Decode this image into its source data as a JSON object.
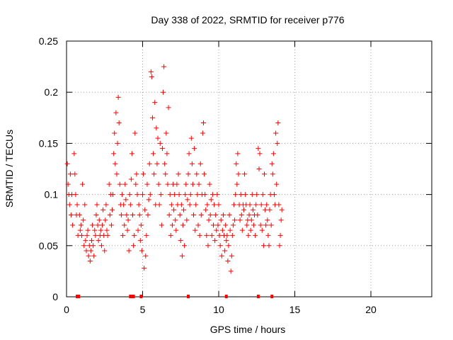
{
  "chart_data": {
    "type": "scatter",
    "title": "Day 338 of 2022, SRMTID for receiver p776",
    "xlabel": "GPS time / hours",
    "ylabel": "SRMTID / TECUs",
    "xlim": [
      0,
      24
    ],
    "ylim": [
      0,
      0.25
    ],
    "x_ticks": [
      0,
      5,
      10,
      15,
      20
    ],
    "y_ticks": [
      0,
      0.05,
      0.1,
      0.15,
      0.2,
      0.25
    ],
    "x_tick_labels": [
      "0",
      "5",
      "10",
      "15",
      "20"
    ],
    "y_tick_labels": [
      "0",
      "0.05",
      "0.1",
      "0.15",
      "0.2",
      "0.25"
    ],
    "grid": true,
    "marker": "plus",
    "color": "#ff0000",
    "series": [
      {
        "name": "SRMTID",
        "points": [
          [
            0.05,
            0.13
          ],
          [
            0.1,
            0.11
          ],
          [
            0.15,
            0.1
          ],
          [
            0.2,
            0.09
          ],
          [
            0.25,
            0.12
          ],
          [
            0.3,
            0.08
          ],
          [
            0.35,
            0.1
          ],
          [
            0.4,
            0.07
          ],
          [
            0.5,
            0.14
          ],
          [
            0.55,
            0.12
          ],
          [
            0.6,
            0.1
          ],
          [
            0.65,
            0.08
          ],
          [
            0.7,
            0.09
          ],
          [
            0.75,
            0.06
          ],
          [
            0.85,
            0.08
          ],
          [
            0.9,
            0.065
          ],
          [
            0.95,
            0.07
          ],
          [
            1.0,
            0.06
          ],
          [
            1.05,
            0.11
          ],
          [
            1.1,
            0.075
          ],
          [
            1.15,
            0.05
          ],
          [
            1.2,
            0.09
          ],
          [
            1.25,
            0.055
          ],
          [
            1.3,
            0.045
          ],
          [
            1.35,
            0.06
          ],
          [
            1.4,
            0.065
          ],
          [
            1.45,
            0.04
          ],
          [
            1.5,
            0.05
          ],
          [
            1.55,
            0.035
          ],
          [
            1.6,
            0.045
          ],
          [
            1.65,
            0.055
          ],
          [
            1.7,
            0.07
          ],
          [
            1.75,
            0.05
          ],
          [
            1.8,
            0.04
          ],
          [
            1.85,
            0.065
          ],
          [
            1.9,
            0.06
          ],
          [
            1.95,
            0.08
          ],
          [
            2.0,
            0.09
          ],
          [
            2.05,
            0.07
          ],
          [
            2.1,
            0.055
          ],
          [
            2.15,
            0.075
          ],
          [
            2.2,
            0.06
          ],
          [
            2.25,
            0.065
          ],
          [
            2.3,
            0.05
          ],
          [
            2.35,
            0.07
          ],
          [
            2.4,
            0.085
          ],
          [
            2.45,
            0.06
          ],
          [
            2.5,
            0.045
          ],
          [
            2.55,
            0.075
          ],
          [
            2.6,
            0.09
          ],
          [
            2.65,
            0.065
          ],
          [
            2.7,
            0.06
          ],
          [
            2.8,
            0.11
          ],
          [
            2.85,
            0.08
          ],
          [
            2.9,
            0.1
          ],
          [
            2.95,
            0.07
          ],
          [
            3.0,
            0.085
          ],
          [
            3.05,
            0.1
          ],
          [
            3.1,
            0.14
          ],
          [
            3.15,
            0.16
          ],
          [
            3.2,
            0.13
          ],
          [
            3.25,
            0.18
          ],
          [
            3.3,
            0.12
          ],
          [
            3.35,
            0.15
          ],
          [
            3.4,
            0.195
          ],
          [
            3.45,
            0.17
          ],
          [
            3.5,
            0.11
          ],
          [
            3.55,
            0.09
          ],
          [
            3.6,
            0.08
          ],
          [
            3.65,
            0.1
          ],
          [
            3.7,
            0.06
          ],
          [
            3.75,
            0.09
          ],
          [
            3.8,
            0.07
          ],
          [
            3.85,
            0.11
          ],
          [
            3.9,
            0.095
          ],
          [
            3.95,
            0.08
          ],
          [
            4.0,
            0.065
          ],
          [
            4.05,
            0.075
          ],
          [
            4.1,
            0.045
          ],
          [
            4.15,
            0.1
          ],
          [
            4.2,
            0.09
          ],
          [
            4.25,
            0.115
          ],
          [
            4.3,
            0.14
          ],
          [
            4.35,
            0.08
          ],
          [
            4.4,
            0.05
          ],
          [
            4.45,
            0.06
          ],
          [
            4.5,
            0.16
          ],
          [
            4.55,
            0.11
          ],
          [
            4.6,
            0.12
          ],
          [
            4.65,
            0.1
          ],
          [
            4.7,
            0.065
          ],
          [
            4.75,
            0.09
          ],
          [
            4.8,
            0.08
          ],
          [
            4.85,
            0.055
          ],
          [
            4.9,
            0.07
          ],
          [
            4.95,
            0.045
          ],
          [
            5.0,
            0.1
          ],
          [
            5.05,
            0.12
          ],
          [
            5.1,
            0.028
          ],
          [
            5.15,
            0.085
          ],
          [
            5.2,
            0.04
          ],
          [
            5.25,
            0.06
          ],
          [
            5.3,
            0.11
          ],
          [
            5.35,
            0.08
          ],
          [
            5.4,
            0.095
          ],
          [
            5.45,
            0.13
          ],
          [
            5.5,
            0.1
          ],
          [
            5.55,
            0.22
          ],
          [
            5.6,
            0.215
          ],
          [
            5.65,
            0.175
          ],
          [
            5.7,
            0.14
          ],
          [
            5.75,
            0.12
          ],
          [
            5.8,
            0.19
          ],
          [
            5.85,
            0.09
          ],
          [
            5.9,
            0.165
          ],
          [
            5.95,
            0.13
          ],
          [
            6.0,
            0.155
          ],
          [
            6.05,
            0.11
          ],
          [
            6.1,
            0.09
          ],
          [
            6.15,
            0.15
          ],
          [
            6.2,
            0.1
          ],
          [
            6.25,
            0.07
          ],
          [
            6.3,
            0.145
          ],
          [
            6.35,
            0.2
          ],
          [
            6.4,
            0.225
          ],
          [
            6.45,
            0.13
          ],
          [
            6.5,
            0.12
          ],
          [
            6.55,
            0.16
          ],
          [
            6.6,
            0.14
          ],
          [
            6.65,
            0.11
          ],
          [
            6.7,
            0.185
          ],
          [
            6.75,
            0.08
          ],
          [
            6.8,
            0.1
          ],
          [
            6.85,
            0.06
          ],
          [
            6.9,
            0.09
          ],
          [
            6.95,
            0.07
          ],
          [
            7.0,
            0.11
          ],
          [
            7.05,
            0.085
          ],
          [
            7.1,
            0.1
          ],
          [
            7.15,
            0.075
          ],
          [
            7.2,
            0.065
          ],
          [
            7.25,
            0.11
          ],
          [
            7.3,
            0.09
          ],
          [
            7.35,
            0.12
          ],
          [
            7.4,
            0.1
          ],
          [
            7.45,
            0.08
          ],
          [
            7.5,
            0.055
          ],
          [
            7.55,
            0.09
          ],
          [
            7.6,
            0.04
          ],
          [
            7.65,
            0.07
          ],
          [
            7.7,
            0.085
          ],
          [
            7.75,
            0.05
          ],
          [
            7.8,
            0.1
          ],
          [
            7.85,
            0.11
          ],
          [
            7.9,
            0.075
          ],
          [
            7.95,
            0.095
          ],
          [
            8.0,
            0.12
          ],
          [
            8.05,
            0.14
          ],
          [
            8.1,
            0.09
          ],
          [
            8.15,
            0.1
          ],
          [
            8.2,
            0.155
          ],
          [
            8.25,
            0.13
          ],
          [
            8.3,
            0.11
          ],
          [
            8.35,
            0.08
          ],
          [
            8.4,
            0.145
          ],
          [
            8.45,
            0.065
          ],
          [
            8.5,
            0.09
          ],
          [
            8.55,
            0.12
          ],
          [
            8.6,
            0.1
          ],
          [
            8.65,
            0.07
          ],
          [
            8.7,
            0.11
          ],
          [
            8.75,
            0.06
          ],
          [
            8.8,
            0.13
          ],
          [
            8.85,
            0.08
          ],
          [
            8.9,
            0.1
          ],
          [
            8.95,
            0.16
          ],
          [
            9.0,
            0.17
          ],
          [
            9.05,
            0.12
          ],
          [
            9.1,
            0.1
          ],
          [
            9.15,
            0.085
          ],
          [
            9.2,
            0.06
          ],
          [
            9.25,
            0.09
          ],
          [
            9.3,
            0.05
          ],
          [
            9.35,
            0.075
          ],
          [
            9.4,
            0.11
          ],
          [
            9.45,
            0.08
          ],
          [
            9.5,
            0.095
          ],
          [
            9.55,
            0.06
          ],
          [
            9.6,
            0.1
          ],
          [
            9.65,
            0.07
          ],
          [
            9.7,
            0.09
          ],
          [
            9.75,
            0.055
          ],
          [
            9.8,
            0.08
          ],
          [
            9.85,
            0.065
          ],
          [
            9.9,
            0.1
          ],
          [
            9.95,
            0.07
          ],
          [
            10.0,
            0.09
          ],
          [
            10.05,
            0.06
          ],
          [
            10.1,
            0.05
          ],
          [
            10.15,
            0.075
          ],
          [
            10.2,
            0.04
          ],
          [
            10.25,
            0.065
          ],
          [
            10.3,
            0.08
          ],
          [
            10.35,
            0.06
          ],
          [
            10.4,
            0.045
          ],
          [
            10.45,
            0.07
          ],
          [
            10.5,
            0.055
          ],
          [
            10.55,
            0.06
          ],
          [
            10.6,
            0.035
          ],
          [
            10.65,
            0.05
          ],
          [
            10.7,
            0.08
          ],
          [
            10.75,
            0.065
          ],
          [
            10.8,
            0.025
          ],
          [
            10.85,
            0.04
          ],
          [
            10.9,
            0.06
          ],
          [
            10.95,
            0.07
          ],
          [
            11.0,
            0.09
          ],
          [
            11.05,
            0.075
          ],
          [
            11.1,
            0.1
          ],
          [
            11.15,
            0.13
          ],
          [
            11.2,
            0.11
          ],
          [
            11.25,
            0.14
          ],
          [
            11.3,
            0.12
          ],
          [
            11.35,
            0.09
          ],
          [
            11.4,
            0.075
          ],
          [
            11.45,
            0.1
          ],
          [
            11.5,
            0.08
          ],
          [
            11.55,
            0.065
          ],
          [
            11.6,
            0.09
          ],
          [
            11.65,
            0.085
          ],
          [
            11.7,
            0.12
          ],
          [
            11.75,
            0.1
          ],
          [
            11.8,
            0.09
          ],
          [
            11.85,
            0.07
          ],
          [
            11.9,
            0.075
          ],
          [
            11.95,
            0.06
          ],
          [
            12.0,
            0.08
          ],
          [
            12.05,
            0.09
          ],
          [
            12.1,
            0.065
          ],
          [
            12.15,
            0.075
          ],
          [
            12.2,
            0.1
          ],
          [
            12.25,
            0.085
          ],
          [
            12.3,
            0.07
          ],
          [
            12.35,
            0.08
          ],
          [
            12.4,
            0.06
          ],
          [
            12.45,
            0.09
          ],
          [
            12.5,
            0.1
          ],
          [
            12.55,
            0.08
          ],
          [
            12.6,
            0.145
          ],
          [
            12.65,
            0.125
          ],
          [
            12.7,
            0.14
          ],
          [
            12.75,
            0.07
          ],
          [
            12.8,
            0.09
          ],
          [
            12.85,
            0.065
          ],
          [
            12.9,
            0.1
          ],
          [
            12.95,
            0.05
          ],
          [
            13.0,
            0.12
          ],
          [
            13.05,
            0.085
          ],
          [
            13.1,
            0.07
          ],
          [
            13.15,
            0.09
          ],
          [
            13.2,
            0.075
          ],
          [
            13.25,
            0.06
          ],
          [
            13.3,
            0.05
          ],
          [
            13.35,
            0.085
          ],
          [
            13.4,
            0.1
          ],
          [
            13.45,
            0.07
          ],
          [
            13.5,
            0.13
          ],
          [
            13.55,
            0.12
          ],
          [
            13.6,
            0.14
          ],
          [
            13.65,
            0.1
          ],
          [
            13.7,
            0.09
          ],
          [
            13.75,
            0.16
          ],
          [
            13.8,
            0.11
          ],
          [
            13.85,
            0.15
          ],
          [
            13.9,
            0.17
          ],
          [
            13.95,
            0.09
          ],
          [
            14.0,
            0.05
          ],
          [
            14.05,
            0.06
          ],
          [
            14.1,
            0.075
          ],
          [
            14.15,
            0.085
          ]
        ]
      }
    ],
    "baseline_markers_x": [
      0.7,
      0.8,
      4.2,
      4.3,
      4.4,
      4.9,
      8.0,
      10.5,
      12.6,
      13.5
    ]
  }
}
